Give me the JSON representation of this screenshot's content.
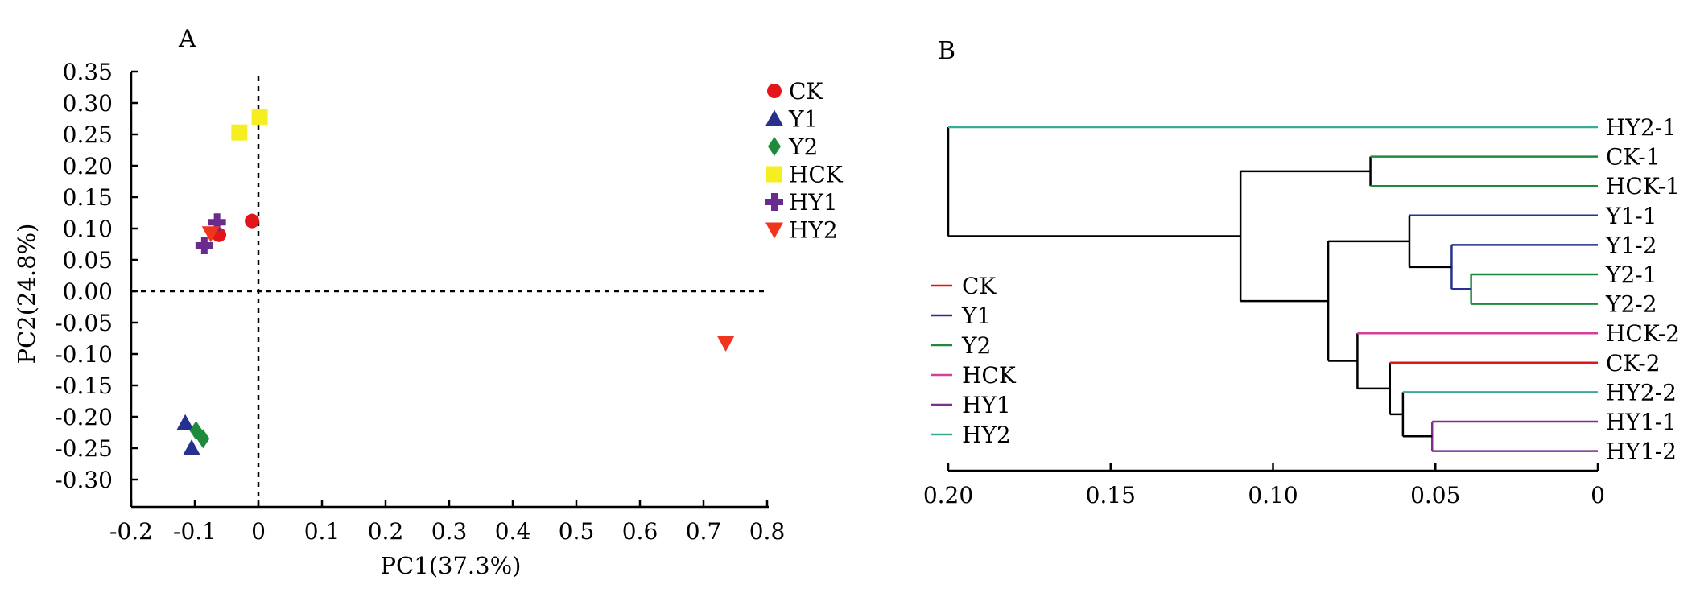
{
  "chart_data": [
    {
      "panel_label": "A",
      "type": "scatter",
      "xlabel": "PC1(37.3%)",
      "ylabel": "PC2(24.8%)",
      "xlim": [
        -0.2,
        0.8
      ],
      "ylim": [
        -0.33,
        0.35
      ],
      "x_ticks": [
        "-0.2",
        "-0.1",
        "0",
        "0.1",
        "0.2",
        "0.3",
        "0.4",
        "0.5",
        "0.6",
        "0.7",
        "0.8"
      ],
      "y_ticks": [
        "0.35",
        "0.30",
        "0.25",
        "0.20",
        "0.15",
        "0.10",
        "0.05",
        "0.00",
        "-0.05",
        "-0.10",
        "-0.15",
        "-0.20",
        "-0.25",
        "-0.30"
      ],
      "reference_lines": {
        "x": 0,
        "y": 0,
        "style": "dashed"
      },
      "grid": false,
      "legend_position": "top-right",
      "series": [
        {
          "name": "CK",
          "marker": "circle",
          "color": "#e3151b",
          "points": [
            [
              -0.062,
              0.09
            ],
            [
              -0.01,
              0.112
            ]
          ]
        },
        {
          "name": "Y1",
          "marker": "triangle-up",
          "color": "#25318c",
          "points": [
            [
              -0.115,
              -0.21
            ],
            [
              -0.105,
              -0.25
            ]
          ]
        },
        {
          "name": "Y2",
          "marker": "diamond",
          "color": "#1f8a3c",
          "points": [
            [
              -0.098,
              -0.222
            ],
            [
              -0.087,
              -0.235
            ]
          ]
        },
        {
          "name": "HCK",
          "marker": "square",
          "color": "#f7ee22",
          "points": [
            [
              -0.03,
              0.253
            ],
            [
              0.002,
              0.278
            ]
          ]
        },
        {
          "name": "HY1",
          "marker": "plus",
          "color": "#6a2b8e",
          "points": [
            [
              -0.065,
              0.11
            ],
            [
              -0.085,
              0.073
            ]
          ]
        },
        {
          "name": "HY2",
          "marker": "triangle-down",
          "color": "#f0341e",
          "points": [
            [
              -0.075,
              0.092
            ],
            [
              0.735,
              -0.082
            ]
          ]
        }
      ]
    },
    {
      "panel_label": "B",
      "type": "dendrogram",
      "x_ticks": [
        "0.20",
        "0.15",
        "0.10",
        "0.05",
        "0"
      ],
      "xlim": [
        0.2,
        0
      ],
      "leaves": [
        {
          "label": "HY2-1",
          "group": "HY2"
        },
        {
          "label": "CK-1",
          "group": "Y2"
        },
        {
          "label": "HCK-1",
          "group": "Y2"
        },
        {
          "label": "Y1-1",
          "group": "Y1"
        },
        {
          "label": "Y1-2",
          "group": "Y1"
        },
        {
          "label": "Y2-1",
          "group": "Y2"
        },
        {
          "label": "Y2-2",
          "group": "Y2"
        },
        {
          "label": "HCK-2",
          "group": "HCK"
        },
        {
          "label": "CK-2",
          "group": "CK"
        },
        {
          "label": "HY2-2",
          "group": "HY2"
        },
        {
          "label": "HY1-1",
          "group": "HY1"
        },
        {
          "label": "HY1-2",
          "group": "HY1"
        }
      ],
      "merges": [
        {
          "id": "n1",
          "left": "Y2-1",
          "right": "Y2-2",
          "height": 0.039,
          "color": "#1f8a3c"
        },
        {
          "id": "n2",
          "left": "Y1-2",
          "right": "n1",
          "height": 0.045,
          "color": "#25318c"
        },
        {
          "id": "n3",
          "left": "Y1-1",
          "right": "n2",
          "height": 0.058,
          "color": "#000000"
        },
        {
          "id": "n4",
          "left": "HY1-1",
          "right": "HY1-2",
          "height": 0.051,
          "color": "#7b2f8e"
        },
        {
          "id": "n5",
          "left": "HY2-2",
          "right": "n4",
          "height": 0.06,
          "color": "#000000"
        },
        {
          "id": "n6",
          "left": "CK-2",
          "right": "n5",
          "height": 0.064,
          "color": "#000000"
        },
        {
          "id": "n7",
          "left": "HCK-2",
          "right": "n6",
          "height": 0.074,
          "color": "#000000"
        },
        {
          "id": "n8",
          "left": "n3",
          "right": "n7",
          "height": 0.083,
          "color": "#000000"
        },
        {
          "id": "n9",
          "left": "CK-1",
          "right": "HCK-1",
          "height": 0.07,
          "color": "#000000"
        },
        {
          "id": "n10",
          "left": "n9",
          "right": "n8",
          "height": 0.11,
          "color": "#000000"
        },
        {
          "id": "n11",
          "left": "HY2-1",
          "right": "n10",
          "height": 0.2,
          "color": "#000000"
        }
      ],
      "legend": [
        {
          "name": "CK",
          "color": "#e3151b"
        },
        {
          "name": "Y1",
          "color": "#25318c"
        },
        {
          "name": "Y2",
          "color": "#1f8a3c"
        },
        {
          "name": "HCK",
          "color": "#d33f9c"
        },
        {
          "name": "HY1",
          "color": "#7b2f8e"
        },
        {
          "name": "HY2",
          "color": "#3bab95"
        }
      ],
      "legend_position": "left"
    }
  ]
}
